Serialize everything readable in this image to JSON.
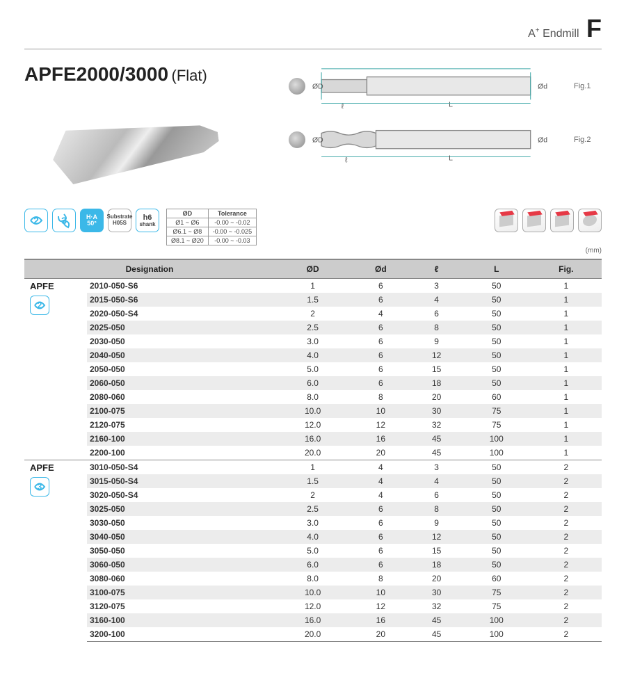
{
  "header": {
    "brand_prefix": "A",
    "brand_sup": "+",
    "brand_suffix": "Endmill",
    "section_letter": "F"
  },
  "title": {
    "main": "APFE2000/3000",
    "sub": "(Flat)"
  },
  "diagrams": [
    {
      "label": "Fig.1",
      "dims": [
        "ØD",
        "Ød",
        "ℓ",
        "L"
      ]
    },
    {
      "label": "Fig.2",
      "dims": [
        "ØD",
        "Ød",
        "ℓ",
        "L"
      ]
    }
  ],
  "badges": {
    "flute2": "2",
    "flute3": "3",
    "ha_top": "H·A",
    "ha_bot": "50°",
    "substrate_top": "Substrate",
    "substrate_bot": "H05S",
    "shank_top": "h6",
    "shank_bot": "shank"
  },
  "tolerance": {
    "headers": [
      "ØD",
      "Tolerance"
    ],
    "rows": [
      [
        "Ø1 ~ Ø6",
        "-0.00 ~ -0.02"
      ],
      [
        "Ø6.1 ~ Ø8",
        "-0.00 ~ -0.025"
      ],
      [
        "Ø8.1 ~ Ø20",
        "-0.00 ~ -0.03"
      ]
    ]
  },
  "unit": "(mm)",
  "table": {
    "headers": [
      "Designation",
      "ØD",
      "Ød",
      "ℓ",
      "L",
      "Fig."
    ],
    "groups": [
      {
        "series": "APFE",
        "flute": "2",
        "rows": [
          [
            "2010-050-S6",
            "1",
            "6",
            "3",
            "50",
            "1"
          ],
          [
            "2015-050-S6",
            "1.5",
            "6",
            "4",
            "50",
            "1"
          ],
          [
            "2020-050-S4",
            "2",
            "4",
            "6",
            "50",
            "1"
          ],
          [
            "2025-050",
            "2.5",
            "6",
            "8",
            "50",
            "1"
          ],
          [
            "2030-050",
            "3.0",
            "6",
            "9",
            "50",
            "1"
          ],
          [
            "2040-050",
            "4.0",
            "6",
            "12",
            "50",
            "1"
          ],
          [
            "2050-050",
            "5.0",
            "6",
            "15",
            "50",
            "1"
          ],
          [
            "2060-050",
            "6.0",
            "6",
            "18",
            "50",
            "1"
          ],
          [
            "2080-060",
            "8.0",
            "8",
            "20",
            "60",
            "1"
          ],
          [
            "2100-075",
            "10.0",
            "10",
            "30",
            "75",
            "1"
          ],
          [
            "2120-075",
            "12.0",
            "12",
            "32",
            "75",
            "1"
          ],
          [
            "2160-100",
            "16.0",
            "16",
            "45",
            "100",
            "1"
          ],
          [
            "2200-100",
            "20.0",
            "20",
            "45",
            "100",
            "1"
          ]
        ]
      },
      {
        "series": "APFE",
        "flute": "3",
        "rows": [
          [
            "3010-050-S4",
            "1",
            "4",
            "3",
            "50",
            "2"
          ],
          [
            "3015-050-S4",
            "1.5",
            "4",
            "4",
            "50",
            "2"
          ],
          [
            "3020-050-S4",
            "2",
            "4",
            "6",
            "50",
            "2"
          ],
          [
            "3025-050",
            "2.5",
            "6",
            "8",
            "50",
            "2"
          ],
          [
            "3030-050",
            "3.0",
            "6",
            "9",
            "50",
            "2"
          ],
          [
            "3040-050",
            "4.0",
            "6",
            "12",
            "50",
            "2"
          ],
          [
            "3050-050",
            "5.0",
            "6",
            "15",
            "50",
            "2"
          ],
          [
            "3060-050",
            "6.0",
            "6",
            "18",
            "50",
            "2"
          ],
          [
            "3080-060",
            "8.0",
            "8",
            "20",
            "60",
            "2"
          ],
          [
            "3100-075",
            "10.0",
            "10",
            "30",
            "75",
            "2"
          ],
          [
            "3120-075",
            "12.0",
            "12",
            "32",
            "75",
            "2"
          ],
          [
            "3160-100",
            "16.0",
            "16",
            "45",
            "100",
            "2"
          ],
          [
            "3200-100",
            "20.0",
            "20",
            "45",
            "100",
            "2"
          ]
        ]
      }
    ]
  },
  "colors": {
    "accent": "#3bb8e8",
    "header_bg": "#cccccc",
    "alt_row": "#ececec",
    "red": "#e63946"
  }
}
